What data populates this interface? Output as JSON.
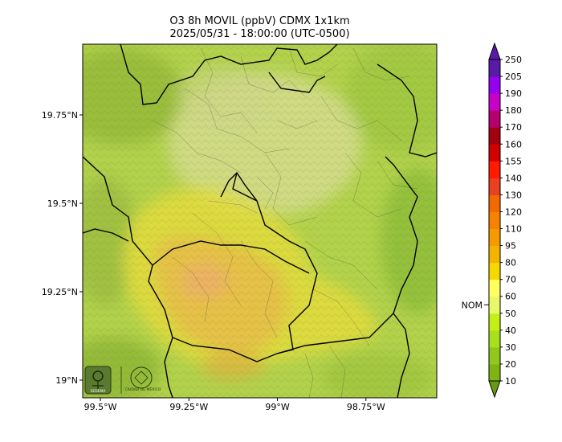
{
  "title": "O3 8h MOVIL (ppbV) CDMX 1x1km",
  "subtitle": "2025/05/31 - 18:00:00 (UTC-0500)",
  "map": {
    "lat_labels": [
      {
        "text": "19.75°N",
        "lat": 19.75
      },
      {
        "text": "19.5°N",
        "lat": 19.5
      },
      {
        "text": "19.25°N",
        "lat": 19.25
      },
      {
        "text": "19°N",
        "lat": 19.0
      }
    ],
    "lon_labels": [
      {
        "text": "99.5°W",
        "lon": -99.5
      },
      {
        "text": "99.25°W",
        "lon": -99.25
      },
      {
        "text": "99°W",
        "lon": -99.0
      },
      {
        "text": "98.75°W",
        "lon": -98.75
      }
    ],
    "extent": {
      "lon_min": -99.55,
      "lon_max": -98.55,
      "lat_min": 18.95,
      "lat_max": 19.95
    },
    "logos": [
      "SEDEMA",
      "CIUDAD DE MÉXICO"
    ]
  },
  "colorbar": {
    "levels": [
      "10",
      "20",
      "30",
      "40",
      "50",
      "60",
      "70",
      "80",
      "95",
      "110",
      "120",
      "130",
      "140",
      "155",
      "160",
      "170",
      "180",
      "190",
      "205",
      "250"
    ],
    "colors": [
      "#6a9a10",
      "#7fb414",
      "#92c81c",
      "#a8e01e",
      "#c4f018",
      "#e8f86a",
      "#ffff60",
      "#f5d800",
      "#f2b400",
      "#f59a00",
      "#f58200",
      "#f06a00",
      "#e84020",
      "#ff1a00",
      "#d00000",
      "#a00010",
      "#b4006e",
      "#c800c8",
      "#9600f0",
      "#5a1aa8"
    ],
    "nom_label": "NOM",
    "nom_value": 60
  }
}
